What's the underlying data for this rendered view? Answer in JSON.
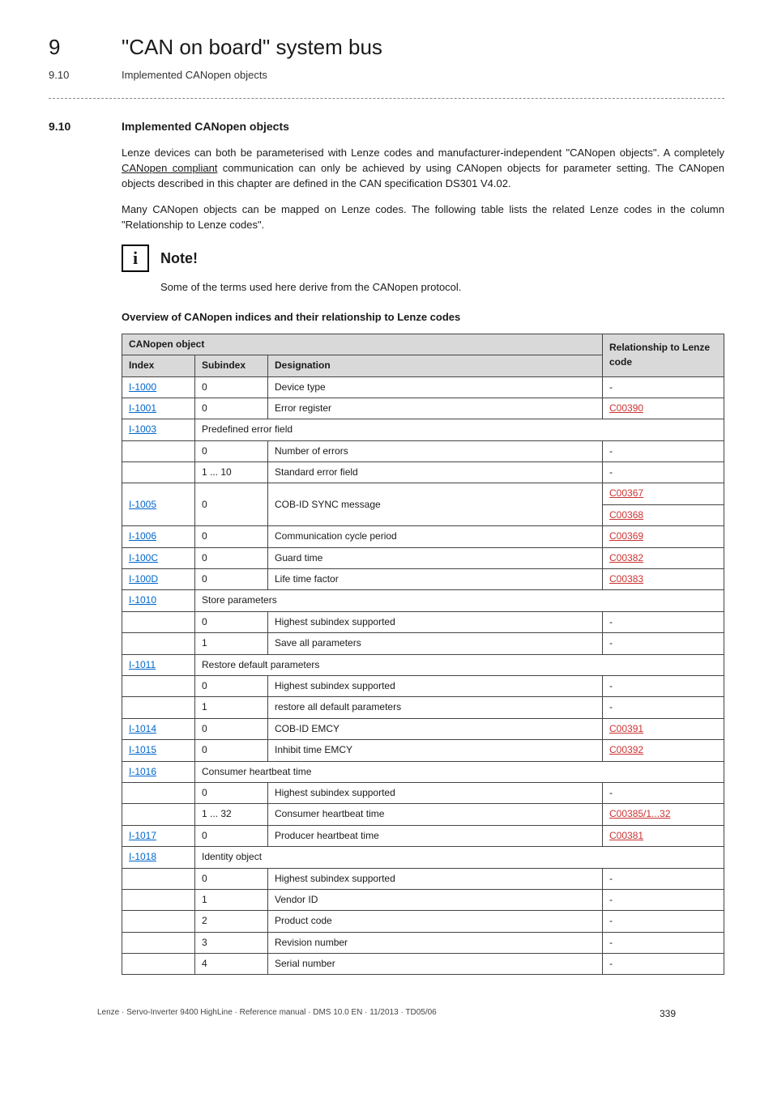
{
  "header": {
    "chapter_num": "9",
    "chapter_title": "\"CAN on board\" system bus",
    "sub_num": "9.10",
    "sub_title": "Implemented CANopen objects"
  },
  "section": {
    "num": "9.10",
    "title": "Implemented CANopen objects"
  },
  "paragraphs": {
    "p1a": "Lenze devices can both be parameterised with Lenze codes and manufacturer-independent \"CANopen objects\". A completely ",
    "p1_link": "CANopen compliant",
    "p1b": " communication can only be achieved by using CANopen objects for parameter setting. The CANopen objects described in this chapter are defined in the CAN specification DS301 V4.02.",
    "p2": "Many CANopen objects can be mapped on Lenze codes. The following table lists the related Lenze codes in the column \"Relationship to Lenze codes\"."
  },
  "note": {
    "label": "Note!",
    "icon_glyph": "i",
    "text": "Some of the terms used here derive from the CANopen protocol."
  },
  "table": {
    "title": "Overview of CANopen indices and their relationship to Lenze codes",
    "head": {
      "group": "CANopen object",
      "index": "Index",
      "subindex": "Subindex",
      "designation": "Designation",
      "rel": "Relationship to Lenze code"
    },
    "rows": [
      {
        "idx": "I-1000",
        "sub": "0",
        "des": "Device type",
        "rel": "-",
        "idx_style": "blue"
      },
      {
        "idx": "I-1001",
        "sub": "0",
        "des": "Error register",
        "rel": "C00390",
        "idx_style": "blue",
        "rel_style": "red"
      },
      {
        "idx": "I-1003",
        "span": "Predefined error field",
        "idx_style": "blue"
      },
      {
        "idx": "",
        "sub": "0",
        "des": "Number of errors",
        "rel": "-"
      },
      {
        "idx": "",
        "sub": "1 ... 10",
        "des": "Standard error field",
        "rel": "-"
      },
      {
        "idx": "I-1005",
        "sub": "0",
        "des": "COB-ID SYNC message",
        "rel": "C00367",
        "idx_style": "blue",
        "rel_style": "red",
        "rowspan_idx": 2,
        "rowspan_sub": 2,
        "rowspan_des": 2
      },
      {
        "rel": "C00368",
        "rel_style": "red",
        "continuation": true
      },
      {
        "idx": "I-1006",
        "sub": "0",
        "des": "Communication cycle period",
        "rel": "C00369",
        "idx_style": "blue",
        "rel_style": "red"
      },
      {
        "idx": "I-100C",
        "sub": "0",
        "des": "Guard time",
        "rel": "C00382",
        "idx_style": "blue",
        "rel_style": "red"
      },
      {
        "idx": "I-100D",
        "sub": "0",
        "des": "Life time factor",
        "rel": "C00383",
        "idx_style": "blue",
        "rel_style": "red"
      },
      {
        "idx": "I-1010",
        "span": "Store parameters",
        "idx_style": "blue"
      },
      {
        "idx": "",
        "sub": "0",
        "des": "Highest subindex supported",
        "rel": "-"
      },
      {
        "idx": "",
        "sub": "1",
        "des": "Save all parameters",
        "rel": "-"
      },
      {
        "idx": "I-1011",
        "span": "Restore default parameters",
        "idx_style": "blue"
      },
      {
        "idx": "",
        "sub": "0",
        "des": "Highest subindex supported",
        "rel": "-"
      },
      {
        "idx": "",
        "sub": "1",
        "des": "restore all default parameters",
        "rel": "-"
      },
      {
        "idx": "I-1014",
        "sub": "0",
        "des": "COB-ID EMCY",
        "rel": "C00391",
        "idx_style": "blue",
        "rel_style": "red"
      },
      {
        "idx": "I-1015",
        "sub": "0",
        "des": "Inhibit time EMCY",
        "rel": "C00392",
        "idx_style": "blue",
        "rel_style": "red"
      },
      {
        "idx": "I-1016",
        "span": "Consumer heartbeat time",
        "idx_style": "blue"
      },
      {
        "idx": "",
        "sub": "0",
        "des": "Highest subindex supported",
        "rel": "-"
      },
      {
        "idx": "",
        "sub": "1 ... 32",
        "des": "Consumer heartbeat time",
        "rel": "C00385/1...32",
        "rel_style": "red"
      },
      {
        "idx": "I-1017",
        "sub": "0",
        "des": "Producer heartbeat time",
        "rel": "C00381",
        "idx_style": "blue",
        "rel_style": "red"
      },
      {
        "idx": "I-1018",
        "span": "Identity object",
        "idx_style": "blue"
      },
      {
        "idx": "",
        "sub": "0",
        "des": "Highest subindex supported",
        "rel": "-"
      },
      {
        "idx": "",
        "sub": "1",
        "des": "Vendor ID",
        "rel": "-"
      },
      {
        "idx": "",
        "sub": "2",
        "des": "Product code",
        "rel": "-"
      },
      {
        "idx": "",
        "sub": "3",
        "des": "Revision number",
        "rel": "-"
      },
      {
        "idx": "",
        "sub": "4",
        "des": "Serial number",
        "rel": "-"
      }
    ]
  },
  "footer": {
    "text": "Lenze · Servo-Inverter 9400 HighLine · Reference manual · DMS 10.0 EN · 11/2013 · TD05/06",
    "page": "339"
  }
}
